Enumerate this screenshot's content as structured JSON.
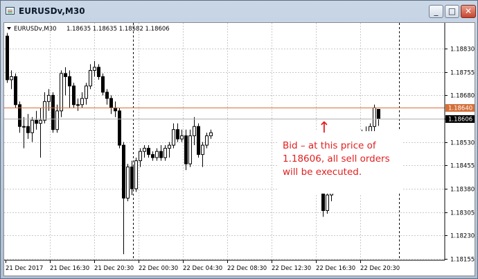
{
  "window": {
    "title": "EURUSDv,M30",
    "min_label": "_",
    "max_label": "□",
    "close_label": "✕"
  },
  "chart_info": {
    "header_symbol": "EURUSDv,M30",
    "header_values": "1.18635 1.18635 1.18582 1.18606"
  },
  "annotation": {
    "lines": [
      "Bid – at this price of",
      "1.18606, all sell orders",
      "will be executed."
    ],
    "arrow": "↑",
    "color": "#e02020"
  },
  "price_labels": {
    "ask": "1.18640",
    "bid": "1.18606"
  },
  "colors": {
    "ask_line": "#d4703a",
    "ask_label_bg": "#d4703a",
    "bid_line": "#b0b0b0",
    "bid_label_bg": "#000000",
    "candle": "#000000",
    "grid": "#c8c8c8"
  },
  "chart_data": {
    "type": "candlestick",
    "title": "",
    "y_ticks": [
      "1.18830",
      "1.18755",
      "1.18680",
      "1.18606",
      "1.18530",
      "1.18455",
      "1.18380",
      "1.18305",
      "1.18230",
      "1.18155"
    ],
    "x_ticks": [
      "21 Dec 2017",
      "21 Dec 16:30",
      "21 Dec 20:30",
      "22 Dec 00:30",
      "22 Dec 04:30",
      "22 Dec 08:30",
      "22 Dec 12:30",
      "22 Dec 16:30",
      "22 Dec 20:30"
    ],
    "ylim": [
      1.18155,
      1.18905
    ],
    "ask": 1.1864,
    "bid": 1.18606,
    "period_separators": [
      "22 Dec 00:00",
      "23 Dec 00:00"
    ],
    "grid": true,
    "candles": [
      {
        "o": 1.1887,
        "h": 1.1888,
        "l": 1.1872,
        "c": 1.1873
      },
      {
        "o": 1.1873,
        "h": 1.1876,
        "l": 1.187,
        "c": 1.1874
      },
      {
        "o": 1.1874,
        "h": 1.1875,
        "l": 1.1864,
        "c": 1.1865
      },
      {
        "o": 1.1865,
        "h": 1.1866,
        "l": 1.1856,
        "c": 1.1858
      },
      {
        "o": 1.1858,
        "h": 1.1861,
        "l": 1.1851,
        "c": 1.1858
      },
      {
        "o": 1.1858,
        "h": 1.1862,
        "l": 1.1854,
        "c": 1.1856
      },
      {
        "o": 1.1856,
        "h": 1.1861,
        "l": 1.1853,
        "c": 1.186
      },
      {
        "o": 1.186,
        "h": 1.1863,
        "l": 1.1857,
        "c": 1.1859
      },
      {
        "o": 1.1859,
        "h": 1.1864,
        "l": 1.1848,
        "c": 1.186
      },
      {
        "o": 1.186,
        "h": 1.1869,
        "l": 1.1859,
        "c": 1.1866
      },
      {
        "o": 1.1866,
        "h": 1.187,
        "l": 1.1863,
        "c": 1.1868
      },
      {
        "o": 1.1868,
        "h": 1.1869,
        "l": 1.1856,
        "c": 1.1857
      },
      {
        "o": 1.1857,
        "h": 1.1865,
        "l": 1.1856,
        "c": 1.1863
      },
      {
        "o": 1.1863,
        "h": 1.1876,
        "l": 1.1861,
        "c": 1.1875
      },
      {
        "o": 1.1875,
        "h": 1.1877,
        "l": 1.1868,
        "c": 1.1874
      },
      {
        "o": 1.1874,
        "h": 1.1876,
        "l": 1.1864,
        "c": 1.1871
      },
      {
        "o": 1.1871,
        "h": 1.1872,
        "l": 1.1864,
        "c": 1.1865
      },
      {
        "o": 1.1865,
        "h": 1.1867,
        "l": 1.1863,
        "c": 1.1865
      },
      {
        "o": 1.1865,
        "h": 1.1869,
        "l": 1.1864,
        "c": 1.1867
      },
      {
        "o": 1.1867,
        "h": 1.1872,
        "l": 1.1865,
        "c": 1.1871
      },
      {
        "o": 1.1871,
        "h": 1.1878,
        "l": 1.187,
        "c": 1.1876
      },
      {
        "o": 1.1876,
        "h": 1.1879,
        "l": 1.1874,
        "c": 1.1877
      },
      {
        "o": 1.1877,
        "h": 1.1878,
        "l": 1.1873,
        "c": 1.1874
      },
      {
        "o": 1.1874,
        "h": 1.1875,
        "l": 1.1868,
        "c": 1.1869
      },
      {
        "o": 1.1869,
        "h": 1.187,
        "l": 1.1865,
        "c": 1.1867
      },
      {
        "o": 1.1867,
        "h": 1.1868,
        "l": 1.1862,
        "c": 1.1864
      },
      {
        "o": 1.1864,
        "h": 1.1866,
        "l": 1.1861,
        "c": 1.1863
      },
      {
        "o": 1.1863,
        "h": 1.1864,
        "l": 1.1851,
        "c": 1.1852
      },
      {
        "o": 1.1852,
        "h": 1.1853,
        "l": 1.1817,
        "c": 1.1835
      },
      {
        "o": 1.1835,
        "h": 1.1846,
        "l": 1.1834,
        "c": 1.1845
      },
      {
        "o": 1.1845,
        "h": 1.1847,
        "l": 1.1836,
        "c": 1.1838
      },
      {
        "o": 1.1838,
        "h": 1.1848,
        "l": 1.1837,
        "c": 1.1847
      },
      {
        "o": 1.1847,
        "h": 1.1851,
        "l": 1.1845,
        "c": 1.185
      },
      {
        "o": 1.185,
        "h": 1.1852,
        "l": 1.1848,
        "c": 1.1851
      },
      {
        "o": 1.1851,
        "h": 1.1852,
        "l": 1.1848,
        "c": 1.1849
      },
      {
        "o": 1.1849,
        "h": 1.185,
        "l": 1.1847,
        "c": 1.1848
      },
      {
        "o": 1.1848,
        "h": 1.1851,
        "l": 1.1847,
        "c": 1.185
      },
      {
        "o": 1.185,
        "h": 1.1852,
        "l": 1.1847,
        "c": 1.1848
      },
      {
        "o": 1.1848,
        "h": 1.1852,
        "l": 1.1847,
        "c": 1.1851
      },
      {
        "o": 1.1851,
        "h": 1.1853,
        "l": 1.1848,
        "c": 1.1852
      },
      {
        "o": 1.1852,
        "h": 1.1859,
        "l": 1.1851,
        "c": 1.1857
      },
      {
        "o": 1.1857,
        "h": 1.1859,
        "l": 1.1853,
        "c": 1.1854
      },
      {
        "o": 1.1854,
        "h": 1.1857,
        "l": 1.1853,
        "c": 1.1855
      },
      {
        "o": 1.1855,
        "h": 1.1857,
        "l": 1.1844,
        "c": 1.1846
      },
      {
        "o": 1.1846,
        "h": 1.1857,
        "l": 1.1845,
        "c": 1.1855
      },
      {
        "o": 1.1855,
        "h": 1.1861,
        "l": 1.1852,
        "c": 1.1858
      },
      {
        "o": 1.1858,
        "h": 1.1859,
        "l": 1.1848,
        "c": 1.1849
      },
      {
        "o": 1.1849,
        "h": 1.1853,
        "l": 1.1845,
        "c": 1.1852
      },
      {
        "o": 1.1852,
        "h": 1.1856,
        "l": 1.1851,
        "c": 1.1855
      },
      {
        "o": 1.1855,
        "h": 1.1857,
        "l": 1.1854,
        "c": 1.1856
      },
      {
        "o": 1.1841,
        "h": 1.1842,
        "l": 1.1829,
        "c": 1.1831
      },
      {
        "o": 1.1831,
        "h": 1.1837,
        "l": 1.183,
        "c": 1.1836
      },
      {
        "o": 1.1836,
        "h": 1.1838,
        "l": 1.1834,
        "c": 1.1837
      },
      {
        "o": 1.1853,
        "h": 1.1856,
        "l": 1.1852,
        "c": 1.1855
      },
      {
        "o": 1.1855,
        "h": 1.1857,
        "l": 1.1853,
        "c": 1.1856
      },
      {
        "o": 1.1856,
        "h": 1.1858,
        "l": 1.1854,
        "c": 1.1856
      },
      {
        "o": 1.1856,
        "h": 1.1859,
        "l": 1.1855,
        "c": 1.1858
      },
      {
        "o": 1.1858,
        "h": 1.1865,
        "l": 1.1856,
        "c": 1.1864
      },
      {
        "o": 1.18635,
        "h": 1.18635,
        "l": 1.18582,
        "c": 1.18606
      }
    ]
  }
}
